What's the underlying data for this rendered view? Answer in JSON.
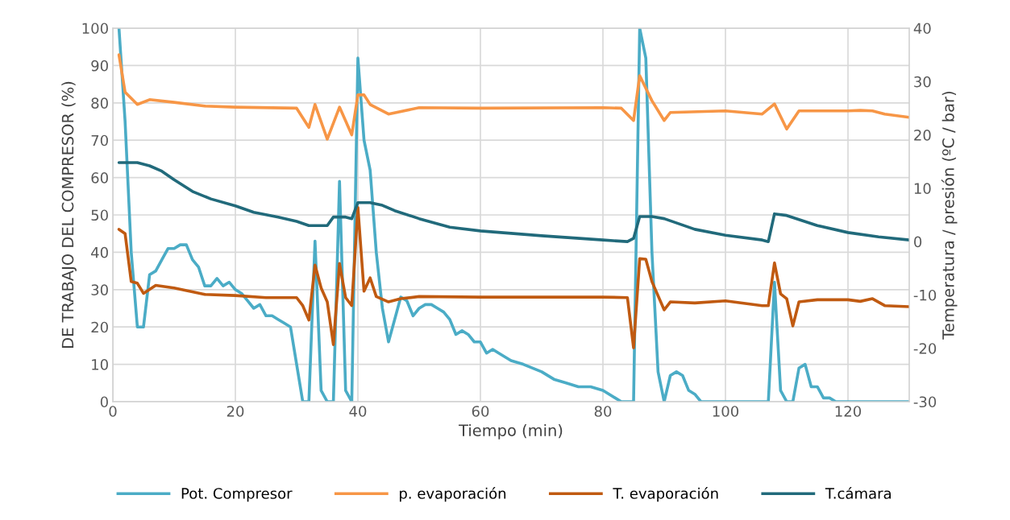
{
  "chart_data": {
    "type": "line",
    "xlabel": "Tiempo (min)",
    "ylabel": "DE TRABAJO DEL COMPRESOR (%)",
    "y2label": "Temperatura / presión (ºC / bar)",
    "xlim": [
      0,
      130
    ],
    "xticks": [
      0,
      20,
      40,
      60,
      80,
      100,
      120
    ],
    "ylim": [
      0,
      100
    ],
    "yticks": [
      0,
      10,
      20,
      30,
      40,
      50,
      60,
      70,
      80,
      90,
      100
    ],
    "y2lim": [
      -30,
      40
    ],
    "y2ticks": [
      -30,
      -20,
      -10,
      0,
      10,
      20,
      30,
      40
    ],
    "grid": true,
    "legend": "bottom",
    "marker": "none",
    "line_style": "solid",
    "series": [
      {
        "name": "Pot. Compresor",
        "color": "#4bacc6",
        "x": [
          1,
          2,
          3,
          4,
          5,
          6,
          7,
          8,
          9,
          10,
          11,
          12,
          13,
          14,
          15,
          16,
          17,
          18,
          19,
          20,
          21,
          22,
          23,
          24,
          25,
          26,
          27,
          28,
          29,
          30,
          31,
          32,
          33,
          34,
          35,
          36,
          37,
          38,
          39,
          40,
          41,
          42,
          43,
          44,
          45,
          46,
          47,
          48,
          49,
          50,
          51,
          52,
          53,
          54,
          55,
          56,
          57,
          58,
          59,
          60,
          61,
          62,
          63,
          65,
          67,
          70,
          72,
          74,
          76,
          78,
          80,
          82,
          83,
          85,
          86,
          87,
          88,
          89,
          90,
          91,
          92,
          93,
          94,
          95,
          96,
          100,
          107,
          108,
          109,
          110,
          111,
          112,
          113,
          114,
          115,
          116,
          117,
          118,
          130
        ],
        "values": [
          100,
          75,
          40,
          20,
          20,
          34,
          35,
          38,
          41,
          41,
          42,
          42,
          38,
          36,
          31,
          31,
          33,
          31,
          32,
          30,
          29,
          27,
          25,
          26,
          23,
          23,
          22,
          21,
          20,
          10,
          0,
          0,
          43,
          3,
          0,
          0,
          59,
          3,
          0,
          92,
          70,
          62,
          40,
          25,
          16,
          22,
          28,
          27,
          23,
          25,
          26,
          26,
          25,
          24,
          22,
          18,
          19,
          18,
          16,
          16,
          13,
          14,
          13,
          11,
          10,
          8,
          6,
          5,
          4,
          4,
          3,
          1,
          0,
          0,
          100,
          92,
          40,
          8,
          0,
          7,
          8,
          7,
          3,
          2,
          0,
          0,
          0,
          32,
          3,
          0,
          0,
          9,
          10,
          4,
          4,
          1,
          1,
          0,
          0
        ]
      },
      {
        "name": "p. evaporación",
        "color": "#f79646",
        "axis": "y2",
        "x": [
          1,
          2,
          4,
          6,
          10,
          15,
          20,
          30,
          32,
          33,
          35,
          37,
          39,
          40,
          41,
          42,
          45,
          50,
          60,
          80,
          83,
          85,
          86,
          88,
          90,
          91,
          100,
          106,
          108,
          110,
          112,
          120,
          122,
          124,
          126,
          130
        ],
        "values": [
          35.0,
          28.0,
          25.7,
          26.6,
          26.1,
          25.4,
          25.2,
          25.0,
          21.4,
          25.7,
          19.2,
          25.2,
          20.0,
          27.5,
          27.5,
          25.7,
          23.9,
          25.1,
          25.0,
          25.1,
          25.0,
          22.7,
          31.1,
          26.4,
          22.7,
          24.2,
          24.5,
          23.9,
          25.8,
          21.1,
          24.5,
          24.5,
          24.6,
          24.5,
          23.9,
          23.3
        ]
      },
      {
        "name": "T. evaporación",
        "color": "#c05a11",
        "axis": "y2",
        "x": [
          1,
          2,
          3,
          4,
          5,
          7,
          10,
          15,
          20,
          25,
          30,
          31,
          32,
          33,
          34,
          35,
          36,
          37,
          38,
          39,
          40,
          41,
          42,
          43,
          45,
          47,
          50,
          60,
          80,
          84,
          85,
          86,
          87,
          88,
          90,
          91,
          95,
          100,
          106,
          107,
          108,
          109,
          110,
          111,
          112,
          115,
          120,
          122,
          124,
          126,
          130
        ],
        "values": [
          2.3,
          1.5,
          -7.5,
          -7.8,
          -9.7,
          -8.2,
          -8.7,
          -9.9,
          -10.1,
          -10.5,
          -10.5,
          -12.0,
          -14.7,
          -4.4,
          -8.7,
          -11.3,
          -19.3,
          -4.1,
          -10.5,
          -12.0,
          6.4,
          -9.3,
          -6.8,
          -10.3,
          -11.3,
          -10.7,
          -10.3,
          -10.4,
          -10.4,
          -10.5,
          -19.9,
          -3.2,
          -3.3,
          -7.5,
          -12.8,
          -11.3,
          -11.5,
          -11.1,
          -12.0,
          -12.0,
          -4.0,
          -9.8,
          -10.7,
          -15.8,
          -11.3,
          -10.9,
          -10.9,
          -11.2,
          -10.7,
          -12.0,
          -12.2
        ]
      },
      {
        "name": "T.cámara",
        "color": "#216a7b",
        "axis": "y2",
        "x": [
          1,
          4,
          6,
          8,
          10,
          13,
          16,
          20,
          23,
          27,
          30,
          32,
          35,
          36,
          38,
          39,
          40,
          42,
          44,
          46,
          50,
          55,
          60,
          70,
          80,
          84,
          85,
          86,
          88,
          90,
          95,
          100,
          106,
          107,
          108,
          110,
          115,
          120,
          125,
          130
        ],
        "values": [
          14.8,
          14.8,
          14.2,
          13.2,
          11.6,
          9.4,
          8.0,
          6.7,
          5.5,
          4.6,
          3.8,
          3.0,
          3.0,
          4.6,
          4.6,
          4.3,
          7.3,
          7.3,
          6.8,
          5.8,
          4.3,
          2.7,
          2.0,
          1.1,
          0.3,
          0.0,
          0.6,
          4.7,
          4.7,
          4.3,
          2.3,
          1.2,
          0.3,
          0.0,
          5.2,
          4.9,
          3.0,
          1.7,
          0.9,
          0.3
        ]
      }
    ]
  }
}
